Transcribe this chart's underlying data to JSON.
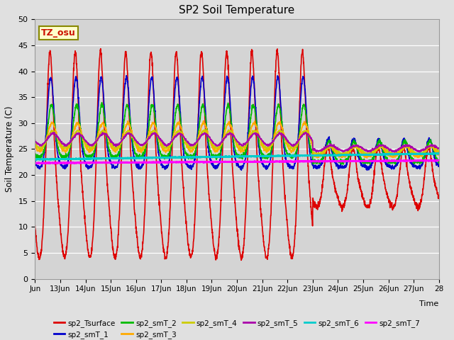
{
  "title": "SP2 Soil Temperature",
  "ylabel": "Soil Temperature (C)",
  "xlabel": "Time",
  "tz_label": "TZ_osu",
  "ylim": [
    0,
    50
  ],
  "fig_bg": "#e0e0e0",
  "plot_bg": "#d4d4d4",
  "series": {
    "sp2_Tsurface": {
      "color": "#dd0000",
      "lw": 1.2
    },
    "sp2_smT_1": {
      "color": "#0000cc",
      "lw": 1.2
    },
    "sp2_smT_2": {
      "color": "#00bb00",
      "lw": 1.2
    },
    "sp2_smT_3": {
      "color": "#ffaa00",
      "lw": 1.2
    },
    "sp2_smT_4": {
      "color": "#cccc00",
      "lw": 1.2
    },
    "sp2_smT_5": {
      "color": "#aa00aa",
      "lw": 1.2
    },
    "sp2_smT_6": {
      "color": "#00cccc",
      "lw": 1.8
    },
    "sp2_smT_7": {
      "color": "#ff00ff",
      "lw": 1.8
    }
  },
  "x_tick_labels": [
    "Jun",
    "13Jun",
    "14Jun",
    "15Jun",
    "16Jun",
    "17Jun",
    "18Jun",
    "19Jun",
    "20Jun",
    "21Jun",
    "22Jun",
    "23Jun",
    "24Jun",
    "25Jun",
    "26Jun",
    "27Jun",
    "28"
  ],
  "n_days": 16,
  "points_per_day": 144
}
